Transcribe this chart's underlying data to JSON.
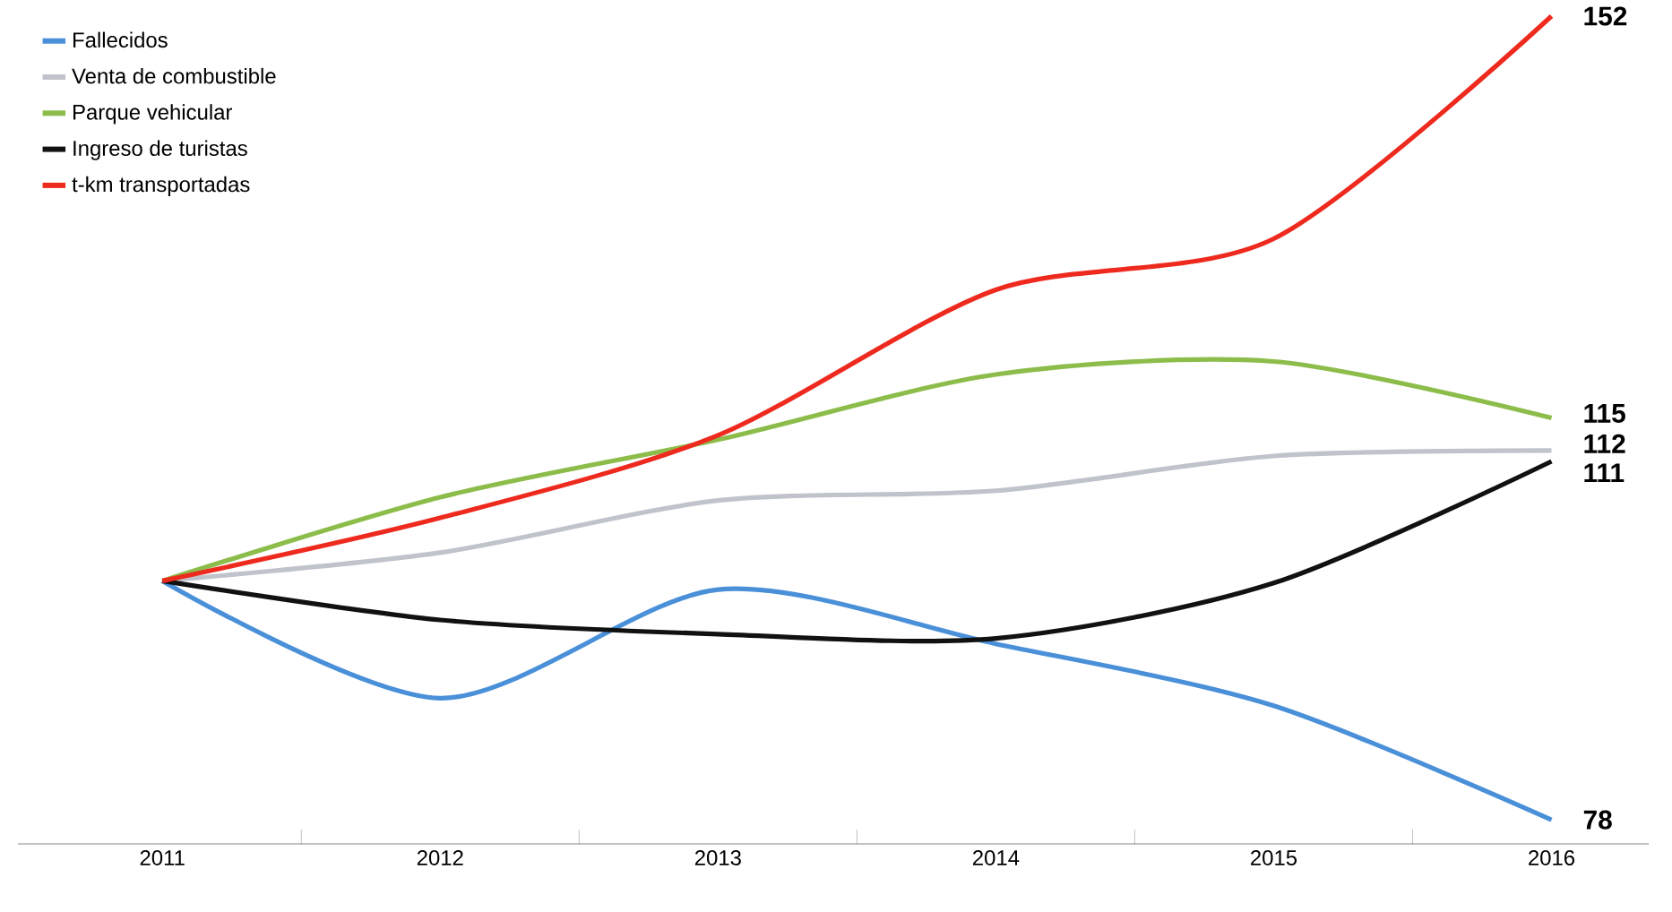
{
  "chart_data": {
    "type": "line",
    "categories": [
      "2011",
      "2012",
      "2013",
      "2014",
      "2015",
      "2016"
    ],
    "tick_labels": "x",
    "legend": "top left",
    "marker": "none",
    "line_style": "solid",
    "grid": false,
    "series": [
      {
        "name": "Fallecidos",
        "color": "#4a90d9",
        "values": [
          100,
          89.2,
          99.2,
          94.2,
          88.5,
          78
        ],
        "value_labels": [
          null,
          null,
          null,
          null,
          null,
          "78"
        ]
      },
      {
        "name": "Venta de combustible",
        "color": "#c0c3cc",
        "values": [
          100,
          102.6,
          107.4,
          108.3,
          111.5,
          112
        ],
        "value_labels": [
          null,
          null,
          null,
          null,
          null,
          "112"
        ]
      },
      {
        "name": "Parque vehicular",
        "color": "#8cbd4a",
        "values": [
          100,
          107.7,
          113,
          119,
          120.2,
          115
        ],
        "value_labels": [
          null,
          null,
          null,
          null,
          null,
          "115"
        ]
      },
      {
        "name": "Ingreso de turistas",
        "color": "#111111",
        "values": [
          100,
          96.4,
          95.1,
          94.7,
          99.8,
          111
        ],
        "value_labels": [
          null,
          null,
          null,
          null,
          null,
          "111"
        ]
      },
      {
        "name": "t-km transportadas",
        "color": "#ee2a1e",
        "values": [
          100,
          105.8,
          113.4,
          126.8,
          131.5,
          152
        ],
        "value_labels": [
          null,
          null,
          null,
          null,
          null,
          "152"
        ]
      }
    ]
  }
}
